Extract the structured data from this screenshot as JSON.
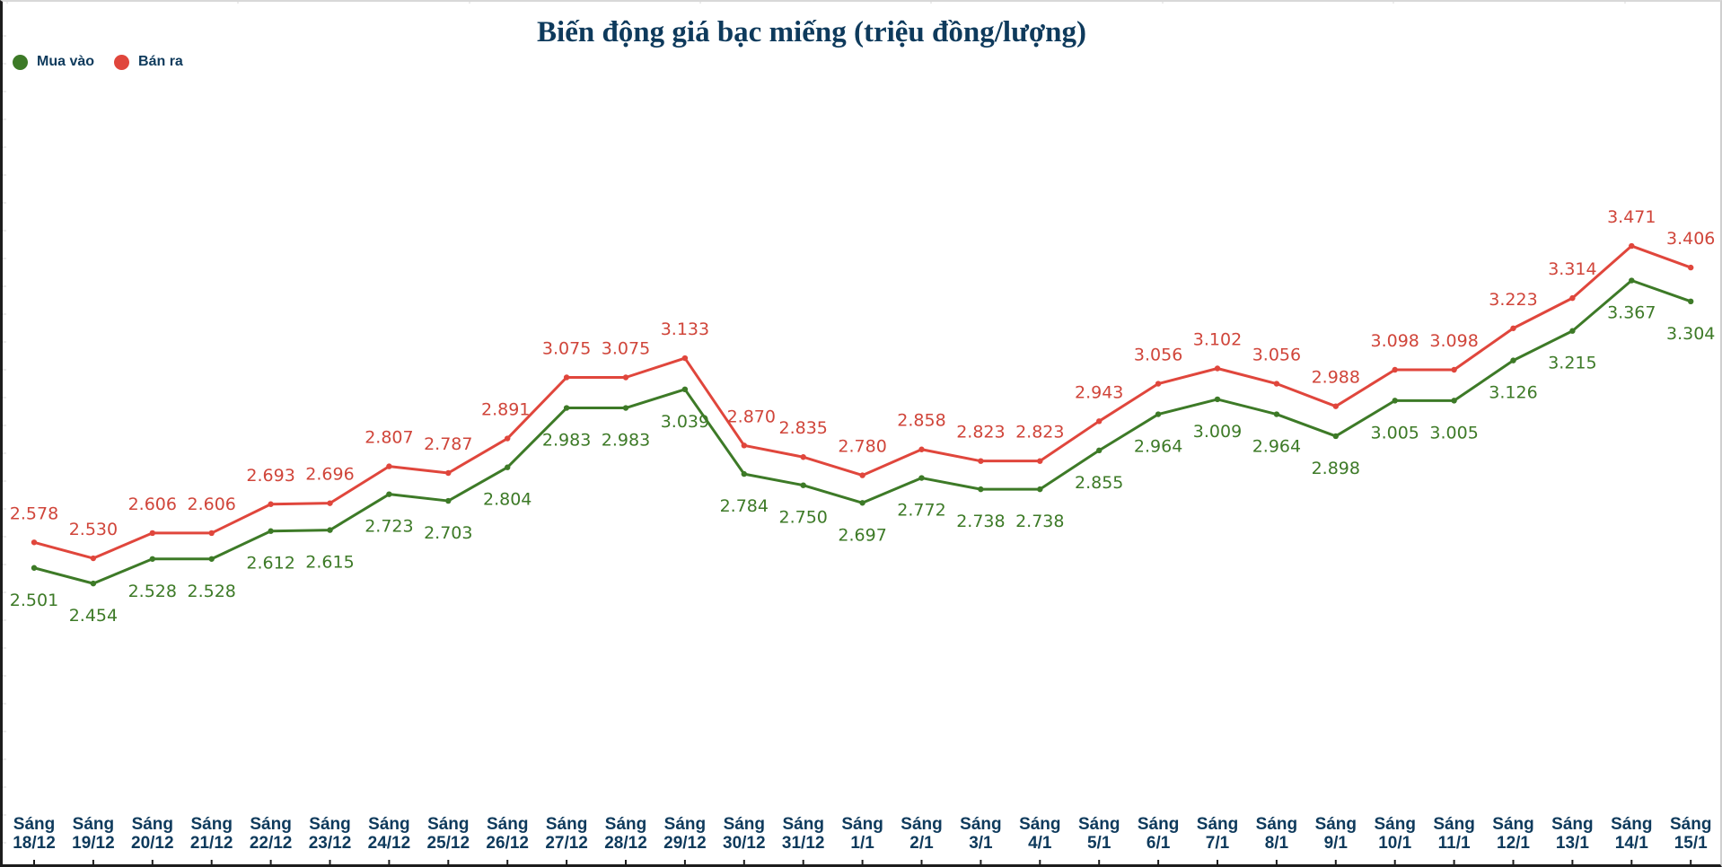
{
  "chart_data": {
    "type": "line",
    "title": "Biến động giá bạc miếng (triệu đồng/lượng)",
    "xlabel": "",
    "ylabel": "",
    "ylim": [
      1.9,
      3.82
    ],
    "legend_position": "top-left",
    "categories": [
      "Sáng 18/12",
      "Sáng 19/12",
      "Sáng 20/12",
      "Sáng 21/12",
      "Sáng 22/12",
      "Sáng 23/12",
      "Sáng 24/12",
      "Sáng 25/12",
      "Sáng 26/12",
      "Sáng 27/12",
      "Sáng 28/12",
      "Sáng 29/12",
      "Sáng 30/12",
      "Sáng 31/12",
      "Sáng 1/1",
      "Sáng 2/1",
      "Sáng 3/1",
      "Sáng 4/1",
      "Sáng 5/1",
      "Sáng 6/1",
      "Sáng 7/1",
      "Sáng 8/1",
      "Sáng 9/1",
      "Sáng 10/1",
      "Sáng 11/1",
      "Sáng 12/1",
      "Sáng 13/1",
      "Sáng 14/1",
      "Sáng 15/1"
    ],
    "series": [
      {
        "name": "Mua vào",
        "color": "#3d7a27",
        "values": [
          2.501,
          2.454,
          2.528,
          2.528,
          2.612,
          2.615,
          2.723,
          2.703,
          2.804,
          2.983,
          2.983,
          3.039,
          2.784,
          2.75,
          2.697,
          2.772,
          2.738,
          2.738,
          2.855,
          2.964,
          3.009,
          2.964,
          2.898,
          3.005,
          3.005,
          3.126,
          3.215,
          3.367,
          3.304
        ],
        "labels": [
          "2.501",
          "2.454",
          "2.528",
          "2.528",
          "2.612",
          "2.615",
          "2.723",
          "2.703",
          "2.804",
          "2.983",
          "2.983",
          "3.039",
          "2.784",
          "2.750",
          "2.697",
          "2.772",
          "2.738",
          "2.738",
          "2.855",
          "2.964",
          "3.009",
          "2.964",
          "2.898",
          "3.005",
          "3.005",
          "3.126",
          "3.215",
          "3.367",
          "3.304"
        ]
      },
      {
        "name": "Bán ra",
        "color": "#e0463c",
        "label_color": "#d0453a",
        "values": [
          2.578,
          2.53,
          2.606,
          2.606,
          2.693,
          2.696,
          2.807,
          2.787,
          2.891,
          3.075,
          3.075,
          3.133,
          2.87,
          2.835,
          2.78,
          2.858,
          2.823,
          2.823,
          2.943,
          3.056,
          3.102,
          3.056,
          2.988,
          3.098,
          3.098,
          3.223,
          3.314,
          3.471,
          3.406
        ],
        "labels": [
          "2.578",
          "2.530",
          "2.606",
          "2.606",
          "2.693",
          "2.696",
          "2.807",
          "2.787",
          "2.891",
          "3.075",
          "3.075",
          "3.133",
          "2.870",
          "2.835",
          "2.780",
          "2.858",
          "2.823",
          "2.823",
          "2.943",
          "3.056",
          "3.102",
          "3.056",
          "2.988",
          "3.098",
          "3.098",
          "3.223",
          "3.314",
          "3.471",
          "3.406"
        ]
      }
    ]
  },
  "legend": {
    "buy": {
      "label": "Mua vào",
      "color": "#3d7a27"
    },
    "sell": {
      "label": "Bán ra",
      "color": "#e0463c"
    }
  }
}
